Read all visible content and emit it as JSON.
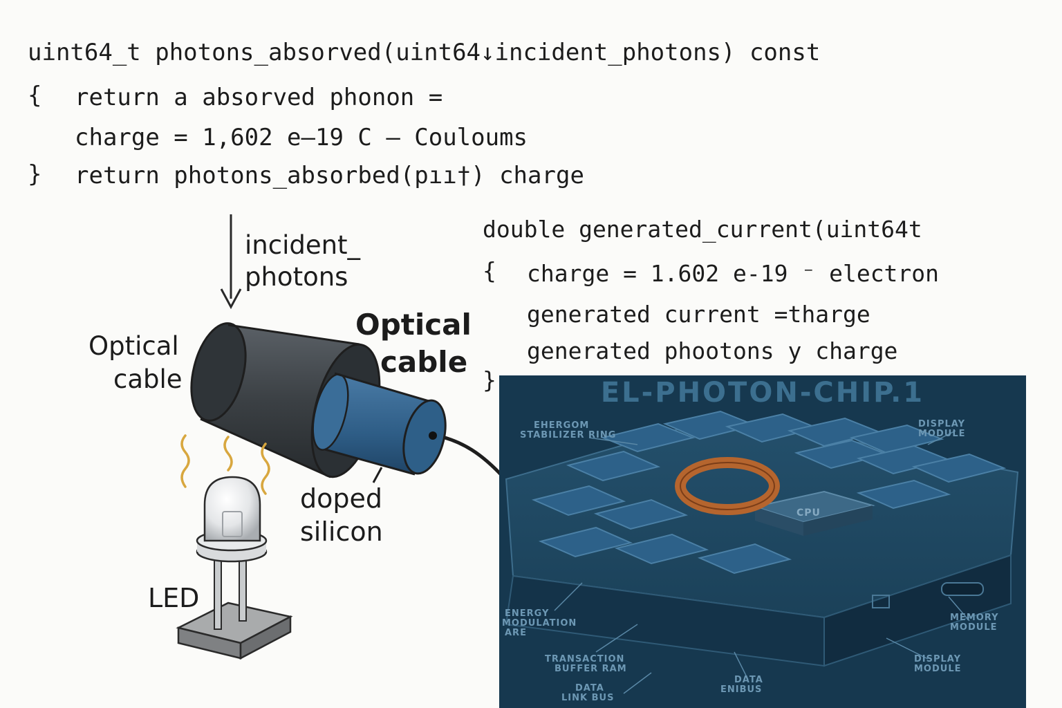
{
  "code_top": {
    "line1": "uint64_t photons_absorved(uint64↓incident_photons) const",
    "line2_brace": "{",
    "line2": "return a absorved phonon =",
    "line3": "charge = 1,602 e–19 C – Couloums",
    "line4_brace": "}",
    "line4": "return photons_absorbed(pıı†) charge"
  },
  "code_right": {
    "line1": "double generated_current(uint64t",
    "line2_brace": "{",
    "line2": "charge = 1.602 e-19 ⁻ electron",
    "line3": "generated current =tharge",
    "line4": "generated phootons y charge",
    "line5_brace": "}"
  },
  "diagram": {
    "incident_label_1": "incident_",
    "incident_label_2": "photons",
    "optical_left_1": "Optical",
    "optical_left_2": "cable",
    "optical_right_1": "Optical",
    "optical_right_2": "cable",
    "doped_1": "doped",
    "doped_2": "silicon",
    "led": "LED"
  },
  "chip": {
    "title": "EL-PHOTON-CHIP.1",
    "labels": {
      "ehergy_stabilizer_1": "EHERGOM",
      "ehergy_stabilizer_2": "STABILIZER RING",
      "display_module_tr_1": "DISPLAY",
      "display_module_tr_2": "MODULE",
      "energy_modulation_1": "ENERGY",
      "energy_modulation_2": "MODULATION",
      "energy_modulation_3": "ARE",
      "memory_module_1": "MEMORY",
      "memory_module_2": "MODULE",
      "transaction_1": "TRANSACTION",
      "transaction_2": "BUFFER RAM",
      "display_module_br_1": "DISPLAY",
      "display_module_br_2": "MODULE",
      "data_link_1": "DATA",
      "data_link_2": "LINK BUS",
      "data_bus_1": "DATA",
      "data_bus_2": "ENIBUS",
      "cpu": "CPU"
    }
  },
  "colors": {
    "chip_background": "#16384f",
    "chip_text": "#6d98b4",
    "ring": "#b5652e",
    "cable_outer": "#3d4246",
    "cable_inner": "#2f5f87",
    "led_base": "#8b8d8e",
    "heat_wave": "#d8a73f"
  }
}
